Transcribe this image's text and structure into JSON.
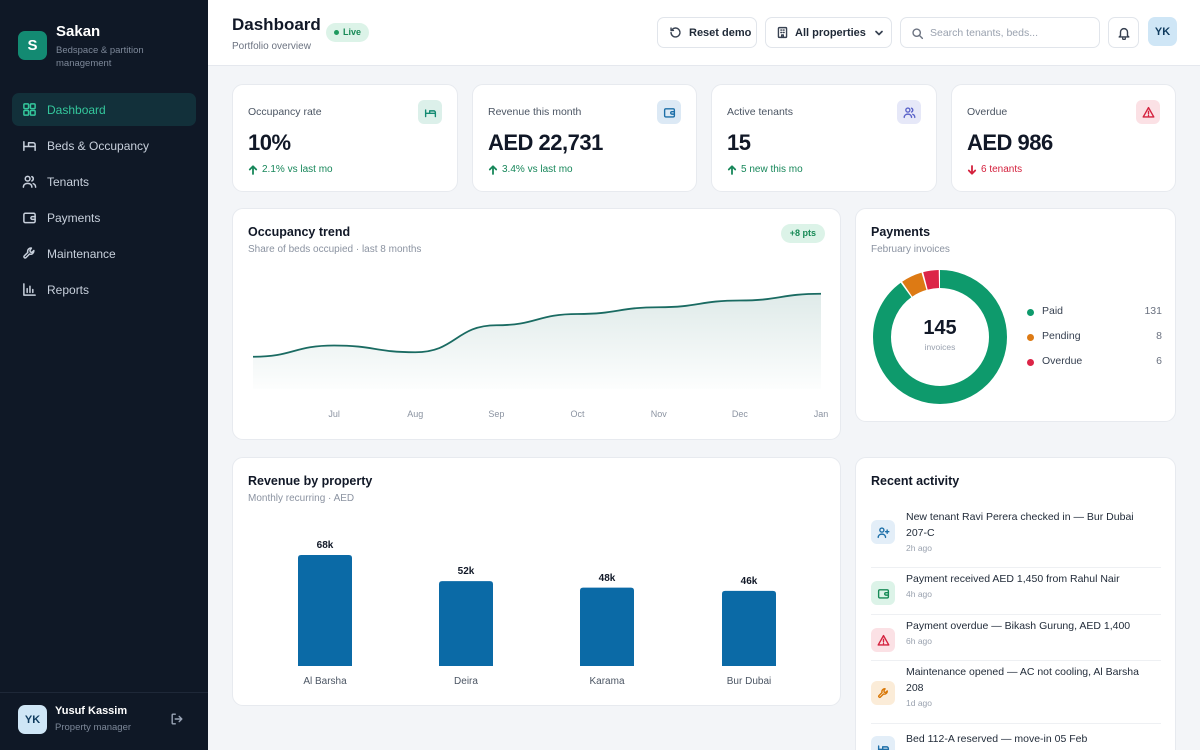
{
  "brand": {
    "initial": "S",
    "name": "Sakan",
    "tagline": "Bedspace & partition management"
  },
  "nav": [
    {
      "label": "Dashboard",
      "icon": "grid-icon",
      "active": true
    },
    {
      "label": "Beds & Occupancy",
      "icon": "bed-icon"
    },
    {
      "label": "Tenants",
      "icon": "users-icon"
    },
    {
      "label": "Payments",
      "icon": "wallet-icon"
    },
    {
      "label": "Maintenance",
      "icon": "wrench-icon"
    },
    {
      "label": "Reports",
      "icon": "bar-chart-icon"
    }
  ],
  "user": {
    "initials": "YK",
    "name": "Yusuf Kassim",
    "role": "Property manager"
  },
  "header": {
    "title": "Dashboard",
    "badge": "Live",
    "subtitle": "Portfolio overview",
    "reset_label": "Reset demo",
    "properties_label": "All properties",
    "search_placeholder": "Search tenants, beds..."
  },
  "kpis": [
    {
      "label": "Occupancy rate",
      "value": "10%",
      "delta": "2.1% vs last mo",
      "trend": "up",
      "icon": "bed-icon",
      "icon_bg": "#dcf0ea",
      "icon_color": "#138a72"
    },
    {
      "label": "Revenue this month",
      "value": "AED 22,731",
      "delta": "3.4% vs last mo",
      "trend": "up",
      "icon": "wallet-icon",
      "icon_bg": "#dce9f5",
      "icon_color": "#1d6fa8"
    },
    {
      "label": "Active tenants",
      "value": "15",
      "delta": "5 new this mo",
      "trend": "up",
      "icon": "users-icon",
      "icon_bg": "#e6e8f8",
      "icon_color": "#5b63c9"
    },
    {
      "label": "Overdue",
      "value": "AED 986",
      "delta": "6 tenants",
      "trend": "down",
      "icon": "alert-icon",
      "icon_bg": "#fbe1e5",
      "icon_color": "#d4213d"
    }
  ],
  "occupancy": {
    "title": "Occupancy trend",
    "subtitle": "Share of beds occupied · last 8 months",
    "badge": "+8 pts"
  },
  "payments": {
    "title": "Payments",
    "subtitle": "February invoices",
    "total": "145",
    "total_caption": "invoices"
  },
  "revenue": {
    "title": "Revenue by property",
    "subtitle": "Monthly recurring · AED"
  },
  "activity": {
    "title": "Recent activity",
    "items": [
      {
        "text": "New tenant Ravi Perera checked in — Bur Dubai 207-C",
        "time": "2h ago",
        "icon": "user-plus-icon",
        "icon_bg": "#e3eef8",
        "icon_color": "#1d6fa8"
      },
      {
        "text": "Payment received AED 1,450 from Rahul Nair",
        "time": "4h ago",
        "icon": "wallet-icon",
        "icon_bg": "#dcf3e8",
        "icon_color": "#178a56"
      },
      {
        "text": "Payment overdue — Bikash Gurung, AED 1,400",
        "time": "6h ago",
        "icon": "alert-icon",
        "icon_bg": "#fbe1e5",
        "icon_color": "#d4213d"
      },
      {
        "text": "Maintenance opened — AC not cooling, Al Barsha 208",
        "time": "1d ago",
        "icon": "wrench-icon",
        "icon_bg": "#fbecd8",
        "icon_color": "#d97706"
      },
      {
        "text": "Bed 112-A reserved — move-in 05 Feb",
        "time": "",
        "icon": "bed-icon",
        "icon_bg": "#e3eef8",
        "icon_color": "#1d6fa8"
      }
    ]
  },
  "chart_data": [
    {
      "type": "area",
      "title": "Occupancy trend",
      "subtitle": "Share of beds occupied · last 8 months",
      "categories": [
        "",
        "Jul",
        "Aug",
        "Sep",
        "Oct",
        "Nov",
        "Dec",
        "Jan"
      ],
      "values": [
        0.3,
        1.8,
        0.9,
        4.5,
        6.0,
        6.9,
        7.8,
        8.7
      ],
      "ylim": [
        -4,
        12
      ],
      "color": "#1a6b62",
      "grid": false
    },
    {
      "type": "pie",
      "title": "Payments",
      "categories": [
        "Paid",
        "Pending",
        "Overdue"
      ],
      "values": [
        131,
        8,
        6
      ],
      "colors": [
        "#0e9a6c",
        "#dd7a14",
        "#dc2447"
      ]
    },
    {
      "type": "bar",
      "title": "Revenue by property",
      "categories": [
        "Al Barsha",
        "Deira",
        "Karama",
        "Bur Dubai"
      ],
      "values": [
        68,
        52,
        48,
        46
      ],
      "labels": [
        "68k",
        "52k",
        "48k",
        "46k"
      ],
      "ylim": [
        0,
        68
      ],
      "color": "#0b6aa6"
    }
  ]
}
